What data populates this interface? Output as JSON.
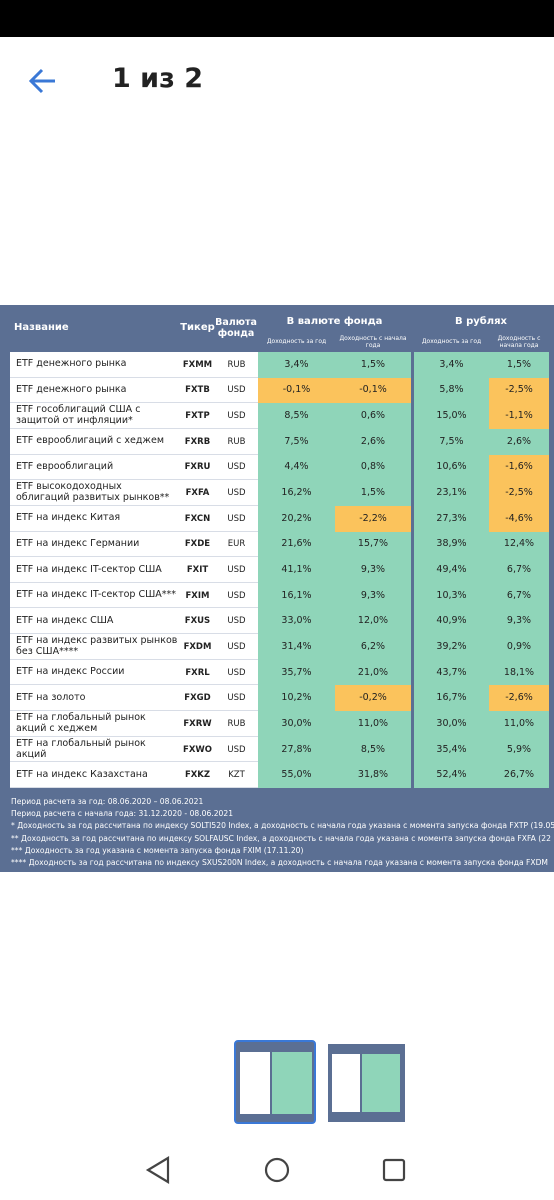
{
  "header": {
    "title": "1 из 2"
  },
  "table": {
    "columns": [
      "Название",
      "Тикер",
      "Валюта фонда"
    ],
    "groups": [
      "В валюте фонда",
      "В рублях"
    ],
    "subcolumns": [
      "Доходность за год",
      "Доходность с начала года",
      "Доходность за год",
      "Доходность с начала года"
    ],
    "colors": {
      "plain": "#8fd5b9",
      "highlight": "#fbc35c"
    },
    "rows": [
      [
        "ETF денежного рынка",
        "FXMM",
        "RUB",
        "3,4%",
        "1,5%",
        "3,4%",
        "1,5%"
      ],
      [
        "ETF денежного рынка",
        "FXTB",
        "USD",
        "-0,1%",
        "-0,1%",
        "5,8%",
        "-2,5%"
      ],
      [
        "ETF гособлигаций США с защитой от инфляции*",
        "FXTP",
        "USD",
        "8,5%",
        "0,6%",
        "15,0%",
        "-1,1%"
      ],
      [
        "ETF еврооблигаций с хеджем",
        "FXRB",
        "RUB",
        "7,5%",
        "2,6%",
        "7,5%",
        "2,6%"
      ],
      [
        "ETF еврооблигаций",
        "FXRU",
        "USD",
        "4,4%",
        "0,8%",
        "10,6%",
        "-1,6%"
      ],
      [
        "ETF высокодоходных облигаций развитых рынков**",
        "FXFA",
        "USD",
        "16,2%",
        "1,5%",
        "23,1%",
        "-2,5%"
      ],
      [
        "ETF на индекс Китая",
        "FXCN",
        "USD",
        "20,2%",
        "-2,2%",
        "27,3%",
        "-4,6%"
      ],
      [
        "ETF на индекс Германии",
        "FXDE",
        "EUR",
        "21,6%",
        "15,7%",
        "38,9%",
        "12,4%"
      ],
      [
        "ETF на индекс IT-сектор США",
        "FXIT",
        "USD",
        "41,1%",
        "9,3%",
        "49,4%",
        "6,7%"
      ],
      [
        "ETF на индекс IT-сектор США***",
        "FXIM",
        "USD",
        "16,1%",
        "9,3%",
        "10,3%",
        "6,7%"
      ],
      [
        "ETF на индекс США",
        "FXUS",
        "USD",
        "33,0%",
        "12,0%",
        "40,9%",
        "9,3%"
      ],
      [
        "ETF на индекс развитых рынков без США****",
        "FXDM",
        "USD",
        "31,4%",
        "6,2%",
        "39,2%",
        "0,9%"
      ],
      [
        "ETF на индекс России",
        "FXRL",
        "USD",
        "35,7%",
        "21,0%",
        "43,7%",
        "18,1%"
      ],
      [
        "ETF на золото",
        "FXGD",
        "USD",
        "10,2%",
        "-0,2%",
        "16,7%",
        "-2,6%"
      ],
      [
        "ETF на глобальный рынок акций с хеджем",
        "FXRW",
        "RUB",
        "30,0%",
        "11,0%",
        "30,0%",
        "11,0%"
      ],
      [
        "ETF на глобальный рынок акций",
        "FXWO",
        "USD",
        "27,8%",
        "8,5%",
        "35,4%",
        "5,9%"
      ],
      [
        "ETF на индекс Казахстана",
        "FXKZ",
        "KZT",
        "55,0%",
        "31,8%",
        "52,4%",
        "26,7%"
      ]
    ],
    "highlighted": [
      [
        false,
        false,
        false,
        false
      ],
      [
        true,
        true,
        false,
        true
      ],
      [
        false,
        false,
        false,
        true
      ],
      [
        false,
        false,
        false,
        false
      ],
      [
        false,
        false,
        false,
        true
      ],
      [
        false,
        false,
        false,
        true
      ],
      [
        false,
        true,
        false,
        true
      ],
      [
        false,
        false,
        false,
        false
      ],
      [
        false,
        false,
        false,
        false
      ],
      [
        false,
        false,
        false,
        false
      ],
      [
        false,
        false,
        false,
        false
      ],
      [
        false,
        false,
        false,
        false
      ],
      [
        false,
        false,
        false,
        false
      ],
      [
        false,
        true,
        false,
        true
      ],
      [
        false,
        false,
        false,
        false
      ],
      [
        false,
        false,
        false,
        false
      ],
      [
        false,
        false,
        false,
        false
      ]
    ],
    "notes": [
      "Период расчета за год: 08.06.2020 – 08.06.2021",
      "Период расчета с начала года: 31.12.2020 - 08.06.2021",
      "* Доходность за год рассчитана по индексу SOLTI520 Index, а доходность с начала года указана с момента запуска фонда FXTP (19.05",
      "** Доходность за год рассчитана по индексу SOLFAUSC Index, а доходность с начала года указана с момента запуска фонда FXFA (22",
      "*** Доходность за год указана с момента запуска фонда FXIM (17.11.20)",
      "**** Доходность за год рассчитана по индексу SXUS200N Index, а доходность с начала года указана с момента запуска фонда FXDM"
    ]
  }
}
